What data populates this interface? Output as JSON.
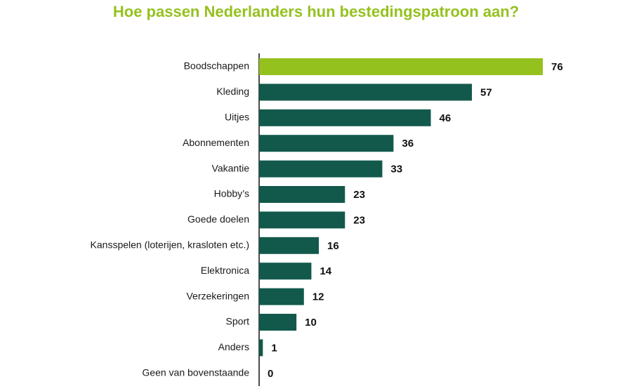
{
  "chart_data": {
    "type": "bar",
    "orientation": "horizontal",
    "title": "Hoe passen Nederlanders hun bestedingspatroon aan?",
    "categories": [
      "Boodschappen",
      "Kleding",
      "Uitjes",
      "Abonnementen",
      "Vakantie",
      "Hobby’s",
      "Goede doelen",
      "Kansspelen (loterijen, krasloten etc.)",
      "Elektronica",
      "Verzekeringen",
      "Sport",
      "Anders",
      "Geen van bovenstaande"
    ],
    "values": [
      76,
      57,
      46,
      36,
      33,
      23,
      23,
      16,
      14,
      12,
      10,
      1,
      0
    ],
    "colors": [
      "#95c11f",
      "#12594b",
      "#12594b",
      "#12594b",
      "#12594b",
      "#12594b",
      "#12594b",
      "#12594b",
      "#12594b",
      "#12594b",
      "#12594b",
      "#12594b",
      "#12594b"
    ]
  }
}
